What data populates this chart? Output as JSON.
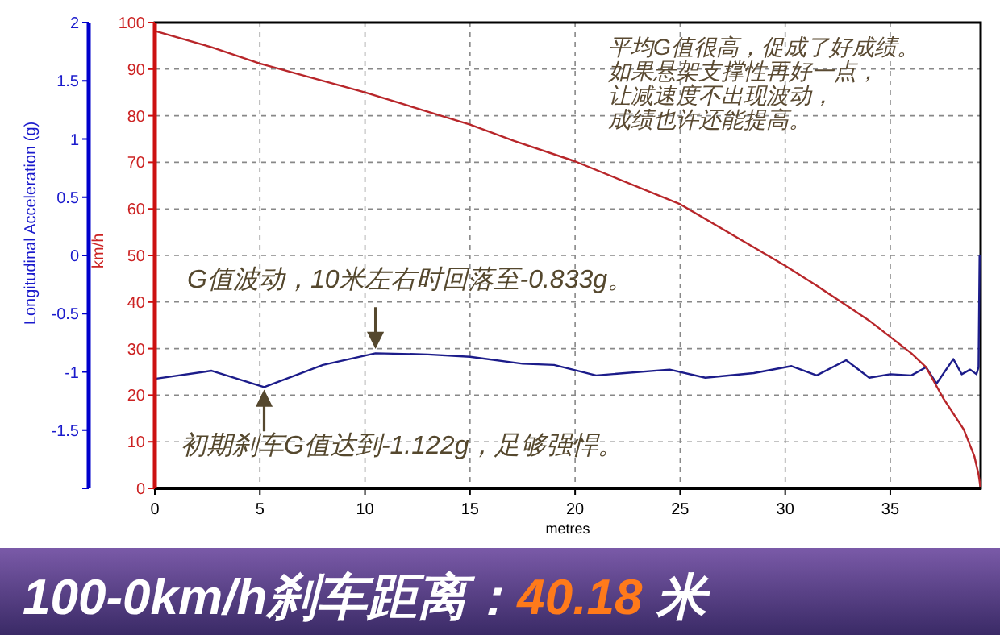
{
  "chart_data": {
    "type": "line",
    "title": "100-0km/h刹车距离：40.18 米",
    "xlabel": "metres",
    "ylabel": "Longitudinal Acceleration (g)",
    "y2label": "km/h",
    "xlim": [
      0,
      39.3
    ],
    "xticks": [
      0,
      5,
      10,
      15,
      20,
      25,
      30,
      35
    ],
    "ylim": [
      -2,
      2
    ],
    "yticks": [
      {
        "value": -2,
        "label": null
      },
      -1.5,
      -1,
      -0.5,
      0,
      0.5,
      1,
      1.5,
      2
    ],
    "y2lim": [
      0,
      100
    ],
    "y2ticks": [
      0,
      10,
      20,
      30,
      40,
      50,
      60,
      70,
      80,
      90,
      100
    ],
    "grid": "y2",
    "series": [
      {
        "color": "#1c1c8a",
        "axis": "y",
        "x": [
          0,
          2.7,
          5.2,
          8,
          10.5,
          13,
          15,
          17.5,
          19,
          21,
          24.5,
          26.2,
          28.5,
          30.3,
          31.5,
          32.9,
          34,
          35,
          36,
          36.7,
          37.2,
          38,
          38.4,
          38.8,
          39.1,
          39.2,
          39.25
        ],
        "values": [
          -1.06,
          -0.99,
          -1.13,
          -0.94,
          -0.84,
          -0.85,
          -0.87,
          -0.93,
          -0.94,
          -1.03,
          -0.98,
          -1.05,
          -1.01,
          -0.95,
          -1.03,
          -0.9,
          -1.05,
          -1.02,
          -1.03,
          -0.96,
          -1.1,
          -0.89,
          -1.02,
          -0.98,
          -1.02,
          -0.96,
          0
        ]
      },
      {
        "color": "#b8262a",
        "axis": "y2",
        "x": [
          0,
          2.7,
          5,
          10,
          15,
          17.1,
          20,
          25,
          30,
          31.5,
          33,
          34,
          35,
          36,
          36.7,
          37.5,
          38.5,
          39,
          39.2,
          39.3
        ],
        "values": [
          98.2,
          94.7,
          91.2,
          85,
          78.1,
          74.6,
          70.2,
          61,
          47.8,
          43.5,
          39,
          36,
          32.5,
          29,
          26,
          19.5,
          12.6,
          6.9,
          3,
          0
        ]
      }
    ],
    "annotations": [
      {
        "text": "G值波动，10米左右时回落至-0.833g。",
        "x": 10.5,
        "y": -0.833
      },
      {
        "text": "初期刹车G值达到-1.122g，足够强悍。",
        "x": 5.2,
        "y": -1.122
      },
      "平均G值很高，促成了好成绩。",
      "如果悬架支撑性再好一点，",
      "让减速度不出现波动，",
      "成绩也许还能提高。"
    ]
  }
}
